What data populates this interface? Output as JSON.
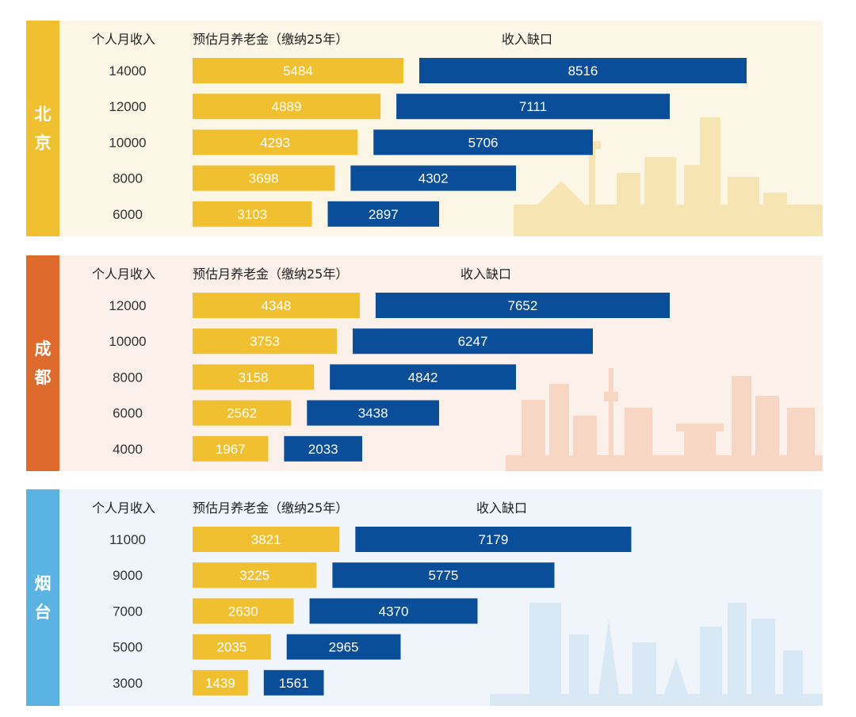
{
  "headers": {
    "income": "个人月收入",
    "pension": "预估月养老金（缴纳25年）",
    "gap": "收入缺口"
  },
  "colors": {
    "pension_bar": "#F0C030",
    "gap_bar": "#0A4E9A",
    "beijing_tab": "#F0C030",
    "chengdu_tab": "#DE6A2C",
    "yantai_tab": "#5BB3E3",
    "beijing_bg": "#FBF6E6",
    "chengdu_bg": "#FCF1EA",
    "yantai_bg": "#EFF5FB"
  },
  "chart_data": [
    {
      "type": "bar",
      "city": "北京",
      "categories": [
        "14000",
        "12000",
        "10000",
        "8000",
        "6000"
      ],
      "series": [
        {
          "name": "预估月养老金（缴纳25年）",
          "values": [
            5484,
            4889,
            4293,
            3698,
            3103
          ]
        },
        {
          "name": "收入缺口",
          "values": [
            8516,
            7111,
            5706,
            4302,
            2897
          ]
        }
      ]
    },
    {
      "type": "bar",
      "city": "成都",
      "categories": [
        "12000",
        "10000",
        "8000",
        "6000",
        "4000"
      ],
      "series": [
        {
          "name": "预估月养老金（缴纳25年）",
          "values": [
            4348,
            3753,
            3158,
            2562,
            1967
          ]
        },
        {
          "name": "收入缺口",
          "values": [
            7652,
            6247,
            4842,
            3438,
            2033
          ]
        }
      ]
    },
    {
      "type": "bar",
      "city": "烟台",
      "categories": [
        "11000",
        "9000",
        "7000",
        "5000",
        "3000"
      ],
      "series": [
        {
          "name": "预估月养老金（缴纳25年）",
          "values": [
            3821,
            3225,
            2630,
            2035,
            1439
          ]
        },
        {
          "name": "收入缺口",
          "values": [
            7179,
            5775,
            4370,
            2965,
            1561
          ]
        }
      ]
    }
  ]
}
